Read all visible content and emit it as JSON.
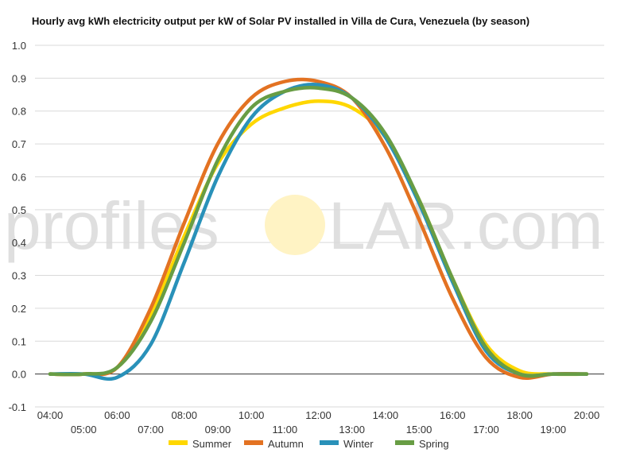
{
  "colors": {
    "summer": "#ffd700",
    "autumn": "#e37222",
    "winter": "#2991b9",
    "spring": "#689d44",
    "grid": "#d9d9d9",
    "zero_line": "#333333",
    "watermark": "#d9d9d9",
    "watermark_sun": "#fff3c4"
  },
  "watermark": {
    "left": "profiles",
    "right": "LAR.com"
  },
  "chart_data": {
    "type": "line",
    "title": "Hourly avg kWh electricity output per kW of Solar PV installed in Villa de Cura, Venezuela (by season)",
    "xlabel": "",
    "ylabel": "",
    "ylim": [
      -0.1,
      1.0
    ],
    "y_ticks": [
      "-0.1",
      "0.0",
      "0.1",
      "0.2",
      "0.3",
      "0.4",
      "0.5",
      "0.6",
      "0.7",
      "0.8",
      "0.9",
      "1.0"
    ],
    "x_ticks_upper": [
      "04:00",
      "06:00",
      "08:00",
      "10:00",
      "12:00",
      "14:00",
      "16:00",
      "18:00",
      "20:00"
    ],
    "x_ticks_lower": [
      "05:00",
      "07:00",
      "09:00",
      "11:00",
      "13:00",
      "15:00",
      "17:00",
      "19:00"
    ],
    "x": [
      "04:00",
      "05:00",
      "06:00",
      "07:00",
      "08:00",
      "09:00",
      "10:00",
      "11:00",
      "12:00",
      "13:00",
      "14:00",
      "15:00",
      "16:00",
      "17:00",
      "18:00",
      "19:00",
      "20:00"
    ],
    "grid": true,
    "legend_position": "bottom",
    "series": [
      {
        "name": "Summer",
        "color_key": "summer",
        "values": [
          0.0,
          0.0,
          0.02,
          0.18,
          0.42,
          0.64,
          0.76,
          0.81,
          0.83,
          0.81,
          0.72,
          0.53,
          0.29,
          0.09,
          0.01,
          0.0,
          0.0
        ]
      },
      {
        "name": "Autumn",
        "color_key": "autumn",
        "values": [
          0.0,
          0.0,
          0.02,
          0.2,
          0.46,
          0.7,
          0.84,
          0.89,
          0.89,
          0.84,
          0.69,
          0.47,
          0.23,
          0.05,
          -0.01,
          0.0,
          0.0
        ]
      },
      {
        "name": "Winter",
        "color_key": "winter",
        "values": [
          0.0,
          0.0,
          -0.01,
          0.09,
          0.34,
          0.6,
          0.78,
          0.86,
          0.88,
          0.84,
          0.72,
          0.52,
          0.28,
          0.07,
          0.0,
          0.0,
          0.0
        ]
      },
      {
        "name": "Spring",
        "color_key": "spring",
        "values": [
          0.0,
          0.0,
          0.02,
          0.16,
          0.4,
          0.65,
          0.81,
          0.86,
          0.87,
          0.84,
          0.73,
          0.53,
          0.29,
          0.08,
          0.0,
          0.0,
          0.0
        ]
      }
    ]
  }
}
